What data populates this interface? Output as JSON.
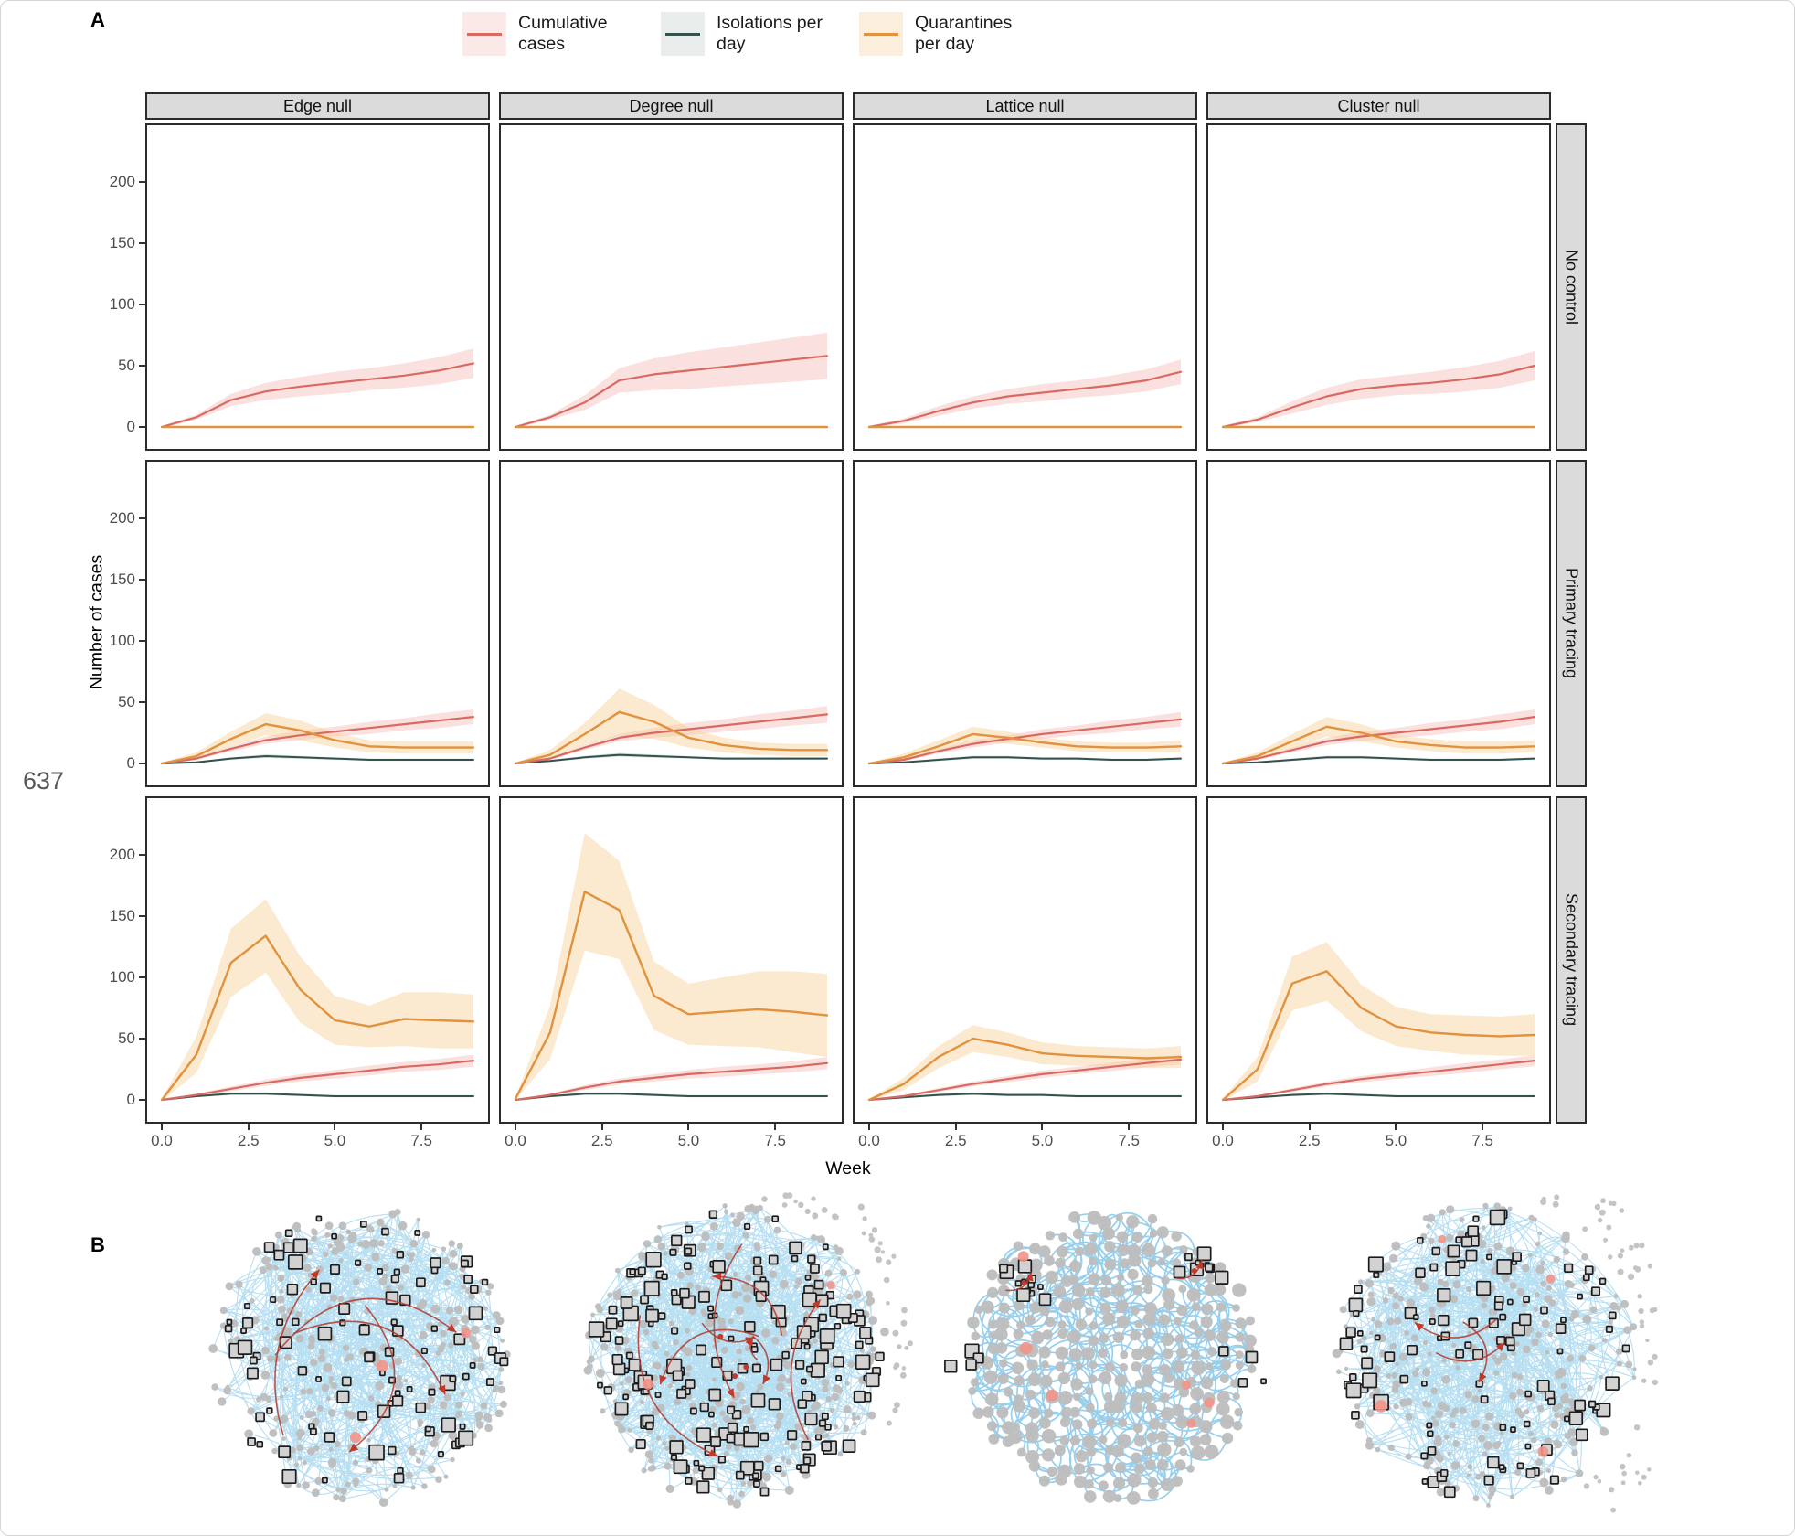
{
  "figure": {
    "panel_a_label": "A",
    "panel_b_label": "B",
    "line_number": "637",
    "y_axis_label": "Number of cases",
    "x_axis_label": "Week",
    "columns": [
      "Edge null",
      "Degree null",
      "Lattice null",
      "Cluster null"
    ],
    "rows": [
      "No control",
      "Primary tracing",
      "Secondary tracing"
    ],
    "y_ticks": [
      0,
      50,
      100,
      150,
      200
    ],
    "y_tick_labels": [
      "0",
      "50",
      "100",
      "150",
      "200"
    ],
    "x_ticks": [
      0,
      2.5,
      5,
      7.5
    ],
    "x_tick_labels": [
      "0.0",
      "2.5",
      "5.0",
      "7.5"
    ],
    "strip_bg": "#DBDBDB",
    "axis_text_color": "#4D4D4D"
  },
  "legend": [
    {
      "key": "cumulative",
      "label": "Cumulative cases",
      "line_color": "#D96A62",
      "ribbon_color": "#F4BCB8",
      "key_fill": "#FBE9E7"
    },
    {
      "key": "isolations",
      "label": "Isolations per day",
      "line_color": "#34514E",
      "ribbon_color": "#AEC2BE",
      "key_fill": "#E9EDEB"
    },
    {
      "key": "quarantines",
      "label": "Quarantines per day",
      "line_color": "#E0923F",
      "ribbon_color": "#F6D096",
      "key_fill": "#FCEEDC"
    }
  ],
  "chart_data": {
    "type": "line",
    "x": [
      0,
      1,
      2,
      3,
      4,
      5,
      6,
      7,
      8,
      9
    ],
    "xlim": [
      0,
      9
    ],
    "ylim": [
      0,
      230
    ],
    "xlabel": "Week",
    "ylabel": "Number of cases",
    "facet_columns": [
      "Edge null",
      "Degree null",
      "Lattice null",
      "Cluster null"
    ],
    "facet_rows": [
      "No control",
      "Primary tracing",
      "Secondary tracing"
    ],
    "grid": false,
    "legend_position": "top",
    "panels": [
      {
        "row": "No control",
        "col": "Edge null",
        "cumulative": {
          "values": [
            0,
            8,
            22,
            29,
            33,
            36,
            39,
            42,
            46,
            52
          ],
          "band": [
            1,
            2,
            5,
            7,
            8,
            9,
            9,
            10,
            11,
            12
          ]
        },
        "isolations": {
          "values": [
            0,
            0,
            0,
            0,
            0,
            0,
            0,
            0,
            0,
            0
          ],
          "band": [
            0,
            0,
            0,
            0,
            0,
            0,
            0,
            0,
            0,
            0
          ]
        },
        "quarantines": {
          "values": [
            0,
            0,
            0,
            0,
            0,
            0,
            0,
            0,
            0,
            0
          ],
          "band": [
            0,
            0,
            0,
            0,
            0,
            0,
            0,
            0,
            0,
            0
          ]
        }
      },
      {
        "row": "No control",
        "col": "Degree null",
        "cumulative": {
          "values": [
            0,
            8,
            20,
            38,
            43,
            46,
            49,
            52,
            55,
            58
          ],
          "band": [
            1,
            2,
            6,
            10,
            13,
            15,
            16,
            17,
            18,
            19
          ]
        },
        "isolations": {
          "values": [
            0,
            0,
            0,
            0,
            0,
            0,
            0,
            0,
            0,
            0
          ],
          "band": [
            0,
            0,
            0,
            0,
            0,
            0,
            0,
            0,
            0,
            0
          ]
        },
        "quarantines": {
          "values": [
            0,
            0,
            0,
            0,
            0,
            0,
            0,
            0,
            0,
            0
          ],
          "band": [
            0,
            0,
            0,
            0,
            0,
            0,
            0,
            0,
            0,
            0
          ]
        }
      },
      {
        "row": "No control",
        "col": "Lattice null",
        "cumulative": {
          "values": [
            0,
            5,
            13,
            20,
            25,
            28,
            31,
            34,
            38,
            45
          ],
          "band": [
            1,
            2,
            4,
            5,
            6,
            7,
            7,
            8,
            9,
            10
          ]
        },
        "isolations": {
          "values": [
            0,
            0,
            0,
            0,
            0,
            0,
            0,
            0,
            0,
            0
          ],
          "band": [
            0,
            0,
            0,
            0,
            0,
            0,
            0,
            0,
            0,
            0
          ]
        },
        "quarantines": {
          "values": [
            0,
            0,
            0,
            0,
            0,
            0,
            0,
            0,
            0,
            0
          ],
          "band": [
            0,
            0,
            0,
            0,
            0,
            0,
            0,
            0,
            0,
            0
          ]
        }
      },
      {
        "row": "No control",
        "col": "Cluster null",
        "cumulative": {
          "values": [
            0,
            6,
            16,
            25,
            31,
            34,
            36,
            39,
            43,
            50
          ],
          "band": [
            1,
            2,
            5,
            7,
            8,
            8,
            9,
            10,
            11,
            12
          ]
        },
        "isolations": {
          "values": [
            0,
            0,
            0,
            0,
            0,
            0,
            0,
            0,
            0,
            0
          ],
          "band": [
            0,
            0,
            0,
            0,
            0,
            0,
            0,
            0,
            0,
            0
          ]
        },
        "quarantines": {
          "values": [
            0,
            0,
            0,
            0,
            0,
            0,
            0,
            0,
            0,
            0
          ],
          "band": [
            0,
            0,
            0,
            0,
            0,
            0,
            0,
            0,
            0,
            0
          ]
        }
      },
      {
        "row": "Primary tracing",
        "col": "Edge null",
        "cumulative": {
          "values": [
            0,
            4,
            12,
            19,
            23,
            26,
            29,
            32,
            35,
            38
          ],
          "band": [
            0.5,
            1,
            2,
            3,
            4,
            4,
            5,
            5,
            6,
            6
          ]
        },
        "isolations": {
          "values": [
            0,
            1,
            4,
            6,
            5,
            4,
            3,
            3,
            3,
            3
          ],
          "band": [
            0.3,
            0.6,
            1,
            1.5,
            1.2,
            1,
            1,
            1,
            1,
            1
          ]
        },
        "quarantines": {
          "values": [
            0,
            6,
            20,
            32,
            27,
            19,
            14,
            13,
            13,
            13
          ],
          "band": [
            0.5,
            3,
            6,
            9,
            8,
            6,
            5,
            5,
            5,
            5
          ]
        }
      },
      {
        "row": "Primary tracing",
        "col": "Degree null",
        "cumulative": {
          "values": [
            0,
            4,
            13,
            21,
            25,
            28,
            31,
            34,
            37,
            40
          ],
          "band": [
            0.5,
            1,
            2,
            3,
            4,
            5,
            5,
            6,
            6,
            7
          ]
        },
        "isolations": {
          "values": [
            0,
            2,
            5,
            7,
            6,
            5,
            4,
            4,
            4,
            4
          ],
          "band": [
            0.3,
            0.7,
            1.2,
            1.6,
            1.3,
            1,
            1,
            1,
            1,
            1
          ]
        },
        "quarantines": {
          "values": [
            0,
            7,
            24,
            42,
            34,
            21,
            15,
            12,
            11,
            11
          ],
          "band": [
            0.5,
            4,
            9,
            19,
            14,
            8,
            6,
            5,
            5,
            5
          ]
        }
      },
      {
        "row": "Primary tracing",
        "col": "Lattice null",
        "cumulative": {
          "values": [
            0,
            3,
            10,
            16,
            20,
            24,
            27,
            30,
            33,
            36
          ],
          "band": [
            0.5,
            1,
            2,
            3,
            3,
            4,
            4,
            5,
            5,
            6
          ]
        },
        "isolations": {
          "values": [
            0,
            1,
            3,
            5,
            5,
            4,
            4,
            3,
            3,
            4
          ],
          "band": [
            0.3,
            0.6,
            1,
            1.3,
            1.2,
            1,
            1,
            1,
            1,
            1
          ]
        },
        "quarantines": {
          "values": [
            0,
            5,
            14,
            24,
            21,
            17,
            14,
            13,
            13,
            14
          ],
          "band": [
            0.5,
            3,
            5,
            6,
            5,
            4,
            4,
            4,
            4,
            5
          ]
        }
      },
      {
        "row": "Primary tracing",
        "col": "Cluster null",
        "cumulative": {
          "values": [
            0,
            4,
            11,
            18,
            22,
            25,
            28,
            31,
            34,
            38
          ],
          "band": [
            0.5,
            1,
            2,
            3,
            4,
            4,
            5,
            5,
            6,
            6
          ]
        },
        "isolations": {
          "values": [
            0,
            1,
            3,
            5,
            5,
            4,
            3,
            3,
            3,
            4
          ],
          "band": [
            0.3,
            0.6,
            1,
            1.3,
            1.2,
            1,
            1,
            1,
            1,
            1
          ]
        },
        "quarantines": {
          "values": [
            0,
            6,
            18,
            30,
            25,
            18,
            15,
            13,
            13,
            14
          ],
          "band": [
            0.5,
            3,
            6,
            8,
            7,
            5,
            5,
            5,
            5,
            5
          ]
        }
      },
      {
        "row": "Secondary tracing",
        "col": "Edge null",
        "cumulative": {
          "values": [
            0,
            4,
            9,
            14,
            18,
            21,
            24,
            27,
            29,
            32
          ],
          "band": [
            0.5,
            1,
            2,
            2.5,
            3,
            3.5,
            4,
            4,
            4.5,
            5
          ]
        },
        "isolations": {
          "values": [
            0,
            3,
            5,
            5,
            4,
            3,
            3,
            3,
            3,
            3
          ],
          "band": [
            0.3,
            0.8,
            1.2,
            1.2,
            1,
            1,
            1,
            1,
            1,
            1
          ]
        },
        "quarantines": {
          "values": [
            0,
            37,
            112,
            134,
            90,
            65,
            60,
            66,
            65,
            64
          ],
          "band": [
            1,
            15,
            28,
            30,
            27,
            20,
            17,
            22,
            23,
            22
          ]
        }
      },
      {
        "row": "Secondary tracing",
        "col": "Degree null",
        "cumulative": {
          "values": [
            0,
            4,
            10,
            15,
            18,
            21,
            23,
            25,
            27,
            30
          ],
          "band": [
            0.5,
            1,
            2,
            2.5,
            3,
            3.5,
            4,
            4,
            4.5,
            5
          ]
        },
        "isolations": {
          "values": [
            0,
            3,
            5,
            5,
            4,
            3,
            3,
            3,
            3,
            3
          ],
          "band": [
            0.3,
            0.8,
            1.2,
            1.2,
            1,
            1,
            1,
            1,
            1,
            1
          ]
        },
        "quarantines": {
          "values": [
            1,
            55,
            170,
            155,
            85,
            70,
            72,
            74,
            72,
            69
          ],
          "band": [
            1,
            22,
            48,
            40,
            28,
            25,
            28,
            31,
            33,
            34
          ]
        }
      },
      {
        "row": "Secondary tracing",
        "col": "Lattice null",
        "cumulative": {
          "values": [
            0,
            3,
            8,
            13,
            17,
            21,
            24,
            27,
            30,
            33
          ],
          "band": [
            0.5,
            1,
            1.5,
            2,
            2.5,
            3,
            3,
            3.5,
            3.5,
            4
          ]
        },
        "isolations": {
          "values": [
            0,
            2,
            4,
            5,
            4,
            4,
            3,
            3,
            3,
            3
          ],
          "band": [
            0.3,
            0.7,
            1,
            1.2,
            1,
            1,
            1,
            1,
            1,
            1
          ]
        },
        "quarantines": {
          "values": [
            0,
            13,
            35,
            50,
            45,
            38,
            36,
            35,
            34,
            35
          ],
          "band": [
            0.5,
            5,
            9,
            11,
            10,
            9,
            8,
            8,
            8,
            9
          ]
        }
      },
      {
        "row": "Secondary tracing",
        "col": "Cluster null",
        "cumulative": {
          "values": [
            0,
            3,
            8,
            13,
            17,
            20,
            23,
            26,
            29,
            32
          ],
          "band": [
            0.5,
            1,
            1.5,
            2,
            2.5,
            3,
            3.5,
            4,
            4,
            4.5
          ]
        },
        "isolations": {
          "values": [
            0,
            2,
            4,
            5,
            4,
            3,
            3,
            3,
            3,
            3
          ],
          "band": [
            0.3,
            0.7,
            1,
            1.2,
            1,
            1,
            1,
            1,
            1,
            1
          ]
        },
        "quarantines": {
          "values": [
            0,
            25,
            95,
            105,
            75,
            60,
            55,
            53,
            52,
            53
          ],
          "band": [
            1,
            10,
            22,
            24,
            19,
            16,
            15,
            16,
            16,
            17
          ]
        }
      }
    ]
  },
  "panel_b": {
    "colors": {
      "edge": "#7CC4E8",
      "node": "#BDBDBD",
      "square_fill": "#D2D2D2",
      "square_stroke": "#1B1B1B",
      "red": "#B03A2E",
      "red_bright": "#C0392B",
      "pink": "#F1948A",
      "halo": "#C4C4C4"
    },
    "networks": [
      {
        "name": "edge-null-network",
        "layout": "uniform",
        "nodes": 320,
        "edges": 470,
        "squares": 105,
        "square_layout": "uniform",
        "red_paths": 4,
        "red_center": false,
        "pink_dots": 3,
        "halo": "none",
        "seed": 7
      },
      {
        "name": "degree-null-network",
        "layout": "uniform",
        "nodes": 355,
        "edges": 640,
        "squares": 185,
        "square_layout": "uniform",
        "red_paths": 5,
        "red_center": true,
        "pink_dots": 2,
        "halo": "top-right",
        "seed": 13
      },
      {
        "name": "lattice-null-network",
        "layout": "lattice",
        "nodes": 0,
        "edges": 520,
        "squares": 30,
        "square_layout": "corners",
        "red_paths": 0,
        "red_center": false,
        "pink_dots": 6,
        "halo": "none",
        "seed": 21
      },
      {
        "name": "cluster-null-network",
        "layout": "uniform",
        "nodes": 320,
        "edges": 500,
        "squares": 115,
        "square_layout": "uniform",
        "red_paths": 3,
        "red_center": false,
        "pink_dots": 4,
        "halo": "wide",
        "seed": 29
      }
    ]
  }
}
